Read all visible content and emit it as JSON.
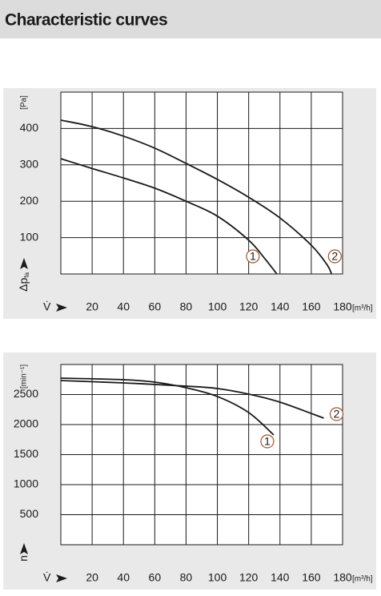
{
  "title": "Characteristic curves",
  "chart_data": [
    {
      "type": "line",
      "x_symbol": "V̇",
      "x_unit": "[m³/h]",
      "y_symbol": "Δp",
      "y_symbol_sub": "fa",
      "y_unit": "[Pa]",
      "xlim": [
        0,
        180
      ],
      "xticks": [
        20,
        40,
        60,
        80,
        100,
        120,
        140,
        160,
        180
      ],
      "ylim": [
        0,
        500
      ],
      "yticks": [
        100,
        200,
        300,
        400
      ],
      "grid": true,
      "series": [
        {
          "name": "1",
          "color": "#1a1a1a",
          "x": [
            0,
            20,
            40,
            60,
            80,
            100,
            120,
            130,
            138
          ],
          "values": [
            317,
            290,
            264,
            236,
            200,
            159,
            93,
            44,
            0
          ]
        },
        {
          "name": "2",
          "color": "#1a1a1a",
          "x": [
            0,
            20,
            40,
            60,
            80,
            100,
            120,
            140,
            160,
            170,
            173
          ],
          "values": [
            423,
            405,
            379,
            346,
            304,
            260,
            211,
            154,
            79,
            26,
            0
          ]
        }
      ]
    },
    {
      "type": "line",
      "x_symbol": "V̇",
      "x_unit": "[m³/h]",
      "y_symbol": "n",
      "y_unit": "[min⁻¹]",
      "xlim": [
        0,
        180
      ],
      "xticks": [
        20,
        40,
        60,
        80,
        100,
        120,
        140,
        160,
        180
      ],
      "ylim": [
        0,
        3000
      ],
      "yticks": [
        500,
        1000,
        1500,
        2000,
        2500
      ],
      "grid": true,
      "series": [
        {
          "name": "1",
          "color": "#1a1a1a",
          "x": [
            0,
            40,
            60,
            80,
            100,
            120,
            136
          ],
          "values": [
            2773,
            2747,
            2707,
            2613,
            2467,
            2200,
            1827
          ]
        },
        {
          "name": "2",
          "color": "#1a1a1a",
          "x": [
            0,
            40,
            80,
            100,
            120,
            140,
            168
          ],
          "values": [
            2733,
            2693,
            2640,
            2600,
            2507,
            2373,
            2107
          ]
        }
      ]
    }
  ]
}
